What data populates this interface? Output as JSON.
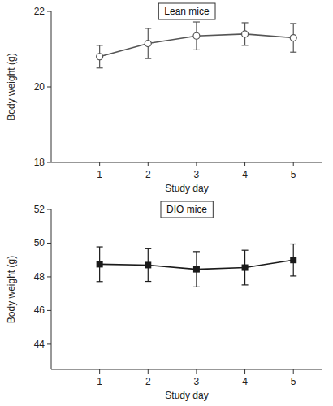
{
  "chart_data": [
    {
      "type": "line",
      "title": "Lean mice",
      "x_label": "Study day",
      "y_label": "Body weight (g)",
      "x": [
        1,
        2,
        3,
        4,
        5
      ],
      "values": [
        20.8,
        21.15,
        21.35,
        21.4,
        21.3
      ],
      "errors": [
        0.3,
        0.4,
        0.37,
        0.3,
        0.38
      ],
      "color": "#555555",
      "marker": "open-circle",
      "xlim": [
        0,
        5.6
      ],
      "xticks": [
        1,
        2,
        3,
        4,
        5
      ],
      "ylim": [
        18,
        22
      ],
      "yticks": [
        18,
        20,
        22
      ]
    },
    {
      "type": "line",
      "title": "DIO mice",
      "x_label": "Study day",
      "y_label": "Body weight (g)",
      "x": [
        1,
        2,
        3,
        4,
        5
      ],
      "values": [
        48.75,
        48.7,
        48.45,
        48.55,
        49.0
      ],
      "errors": [
        1.03,
        0.97,
        1.05,
        1.03,
        0.95
      ],
      "color": "#1a1a1a",
      "marker": "square",
      "xlim": [
        0,
        5.6
      ],
      "xticks": [
        1,
        2,
        3,
        4,
        5
      ],
      "ylim": [
        42.5,
        52
      ],
      "yticks": [
        44,
        46,
        48,
        50,
        52
      ]
    }
  ]
}
